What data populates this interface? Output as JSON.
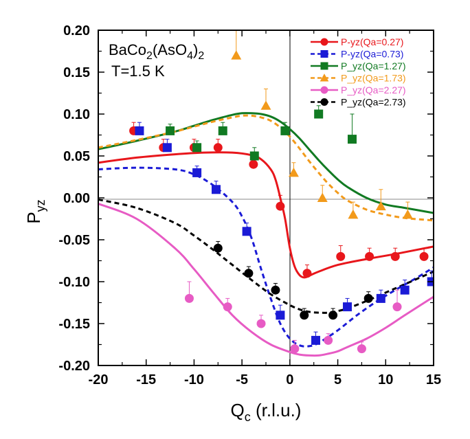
{
  "chart_data": {
    "type": "scatter",
    "xlabel": "Q",
    "xlabel_sub": "c",
    "xlabel_unit": " (r.l.u.)",
    "ylabel": "P",
    "ylabel_sub": "yz",
    "xlim": [
      -20,
      15
    ],
    "ylim": [
      -0.2,
      0.2
    ],
    "xticks": [
      -20,
      -15,
      -10,
      -5,
      0,
      5,
      10,
      15
    ],
    "xtick_labels": [
      "-20",
      "-15",
      "-10",
      "-5",
      "0",
      "5",
      "10",
      "15"
    ],
    "yticks": [
      -0.2,
      -0.15,
      -0.1,
      -0.05,
      0,
      0.05,
      0.1,
      0.15,
      0.2
    ],
    "ytick_labels": [
      "-0.20",
      "-0.15",
      "-0.10",
      "-0.05",
      "0.00",
      "0.05",
      "0.10",
      "0.15",
      "0.20"
    ],
    "annotation": {
      "l1_a": "BaCo",
      "l1_b": "2",
      "l1_c": "(AsO",
      "l1_d": "4",
      "l1_e": ")",
      "l1_f": "2",
      "line2": "T=1.5 K"
    },
    "legend_position": "top-right",
    "series": [
      {
        "name": "P-yz(Qa=0.27)",
        "color": "#e8161b",
        "marker": "circle",
        "line": "solid",
        "points": [
          [
            -16.3,
            0.08
          ],
          [
            -13.2,
            0.06
          ],
          [
            -10.0,
            0.06
          ],
          [
            -7.5,
            0.06
          ],
          [
            -3.8,
            0.04
          ],
          [
            -1.0,
            -0.01
          ],
          [
            1.8,
            -0.09
          ],
          [
            5.3,
            -0.07
          ],
          [
            8.3,
            -0.07
          ],
          [
            11.0,
            -0.07
          ],
          [
            14.0,
            -0.07
          ]
        ],
        "errors": [
          0.01,
          0.01,
          0.01,
          0.01,
          0.01,
          0.013,
          0.01,
          0.013,
          0.01,
          0.01,
          0.01
        ],
        "fit_x": [
          -20,
          -16,
          -12,
          -9,
          -6,
          -4,
          -3,
          -2,
          -1.5,
          -1,
          -0.5,
          0,
          0.5,
          1,
          1.5,
          2,
          3,
          5,
          8,
          11,
          15
        ],
        "fit_y": [
          0.042,
          0.048,
          0.052,
          0.054,
          0.054,
          0.051,
          0.046,
          0.034,
          0.022,
          0.0,
          -0.025,
          -0.06,
          -0.082,
          -0.092,
          -0.095,
          -0.093,
          -0.088,
          -0.08,
          -0.073,
          -0.067,
          -0.058
        ]
      },
      {
        "name": "P-yz(Qa=0.73)",
        "color": "#1b1bd6",
        "marker": "square",
        "line": "dashed",
        "points": [
          [
            -15.7,
            0.08
          ],
          [
            -12.8,
            0.06
          ],
          [
            -9.7,
            0.03
          ],
          [
            -7.7,
            0.01
          ],
          [
            -4.5,
            -0.04
          ],
          [
            -1.0,
            -0.14
          ],
          [
            2.7,
            -0.17
          ],
          [
            6.0,
            -0.13
          ],
          [
            9.5,
            -0.12
          ],
          [
            12.0,
            -0.11
          ],
          [
            14.8,
            -0.1
          ]
        ],
        "errors": [
          0.01,
          0.01,
          0.008,
          0.01,
          0.01,
          0.012,
          0.01,
          0.01,
          0.01,
          0.012,
          0.013
        ],
        "fit_x": [
          -20,
          -16,
          -12,
          -10,
          -8,
          -6,
          -5,
          -4,
          -3,
          -2,
          -1,
          0,
          1,
          2,
          3,
          5,
          7,
          9,
          11,
          13,
          15
        ],
        "fit_y": [
          0.034,
          0.036,
          0.034,
          0.028,
          0.015,
          -0.005,
          -0.022,
          -0.048,
          -0.085,
          -0.12,
          -0.15,
          -0.168,
          -0.176,
          -0.177,
          -0.173,
          -0.158,
          -0.14,
          -0.124,
          -0.11,
          -0.097,
          -0.083
        ]
      },
      {
        "name": "P_yz(Qa=1.27)",
        "color": "#117a22",
        "marker": "square",
        "line": "solid",
        "points": [
          [
            -12.5,
            0.08
          ],
          [
            -9.7,
            0.06
          ],
          [
            -7.0,
            0.08
          ],
          [
            -3.7,
            0.05
          ],
          [
            -0.5,
            0.08
          ],
          [
            3.0,
            0.1
          ],
          [
            6.5,
            0.07
          ]
        ],
        "errors": [
          0.008,
          0.008,
          0.01,
          0.01,
          0.01,
          0.01,
          0.03
        ],
        "fit_x": [
          -20,
          -16,
          -12,
          -10,
          -8,
          -6,
          -5,
          -4,
          -3,
          -2,
          -1,
          0,
          1,
          2,
          3,
          4,
          5,
          6,
          8,
          10,
          12,
          15
        ],
        "fit_y": [
          0.058,
          0.068,
          0.079,
          0.086,
          0.093,
          0.099,
          0.101,
          0.101,
          0.1,
          0.097,
          0.091,
          0.082,
          0.071,
          0.058,
          0.045,
          0.033,
          0.022,
          0.013,
          0.0,
          -0.008,
          -0.012,
          -0.018
        ]
      },
      {
        "name": "P_yz(Qa=1.73)",
        "color": "#f29a1b",
        "marker": "triangle",
        "line": "dashed",
        "points": [
          [
            -5.6,
            0.17
          ],
          [
            -2.5,
            0.11
          ],
          [
            0.4,
            0.03
          ],
          [
            3.4,
            0.0
          ],
          [
            6.6,
            -0.02
          ],
          [
            9.5,
            -0.01
          ],
          [
            12.3,
            -0.02
          ]
        ],
        "errors": [
          0.03,
          0.02,
          0.012,
          0.015,
          0.015,
          0.02,
          0.015
        ],
        "fit_x": [
          -20,
          -16,
          -12,
          -10,
          -8,
          -6,
          -5,
          -4,
          -3,
          -2,
          -1,
          0,
          1,
          2,
          3,
          4,
          5,
          6,
          8,
          10,
          12,
          15
        ],
        "fit_y": [
          0.06,
          0.069,
          0.079,
          0.085,
          0.091,
          0.096,
          0.098,
          0.098,
          0.096,
          0.092,
          0.084,
          0.073,
          0.059,
          0.044,
          0.03,
          0.017,
          0.006,
          -0.003,
          -0.014,
          -0.02,
          -0.024,
          -0.027
        ]
      },
      {
        "name": "P_yz(Qa=2.27)",
        "color": "#e75bc4",
        "marker": "circle",
        "line": "solid",
        "points": [
          [
            -10.5,
            -0.12
          ],
          [
            -6.5,
            -0.13
          ],
          [
            -3.0,
            -0.15
          ],
          [
            0.5,
            -0.18
          ],
          [
            4.0,
            -0.17
          ],
          [
            7.5,
            -0.18
          ],
          [
            11.2,
            -0.13
          ]
        ],
        "errors": [
          0.02,
          0.01,
          0.01,
          0.01,
          0.008,
          0.008,
          0.02
        ],
        "fit_x": [
          -20,
          -16,
          -12,
          -10,
          -8,
          -6,
          -4,
          -2,
          0,
          1,
          2,
          3,
          4,
          5,
          6,
          8,
          10,
          12,
          15
        ],
        "fit_y": [
          -0.007,
          -0.025,
          -0.06,
          -0.085,
          -0.113,
          -0.14,
          -0.16,
          -0.175,
          -0.184,
          -0.187,
          -0.188,
          -0.188,
          -0.186,
          -0.183,
          -0.178,
          -0.168,
          -0.155,
          -0.14,
          -0.118
        ]
      },
      {
        "name": "P_yz(Qa=2.73)",
        "color": "#000000",
        "marker": "circle",
        "line": "dashed",
        "points": [
          [
            -7.5,
            -0.06
          ],
          [
            -4.3,
            -0.09
          ],
          [
            -1.5,
            -0.11
          ],
          [
            1.5,
            -0.14
          ],
          [
            4.5,
            -0.14
          ],
          [
            8.2,
            -0.12
          ]
        ],
        "errors": [
          0.008,
          0.008,
          0.008,
          0.008,
          0.008,
          0.008
        ],
        "fit_x": [
          -20,
          -16,
          -12,
          -10,
          -8,
          -6,
          -4,
          -2,
          0,
          1,
          2,
          3,
          4,
          5,
          6,
          8,
          10,
          12,
          15
        ],
        "fit_y": [
          -0.002,
          -0.012,
          -0.03,
          -0.045,
          -0.062,
          -0.08,
          -0.098,
          -0.115,
          -0.128,
          -0.133,
          -0.136,
          -0.137,
          -0.137,
          -0.135,
          -0.132,
          -0.123,
          -0.113,
          -0.103,
          -0.088
        ]
      }
    ]
  }
}
